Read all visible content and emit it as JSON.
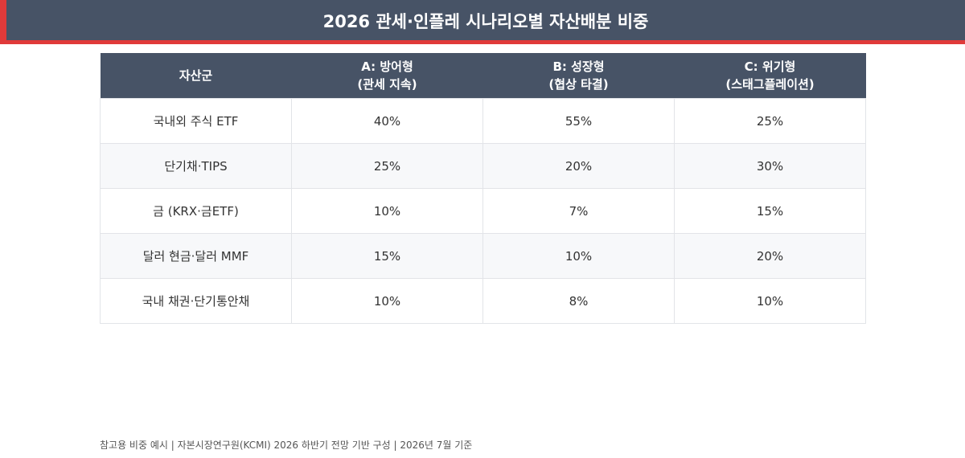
{
  "header": {
    "title": "2026 관세·인플레 시나리오별 자산배분 비중"
  },
  "table": {
    "columns": [
      "자산군",
      "A: 방어형\n(관세 지속)",
      "B: 성장형\n(협상 타결)",
      "C: 위기형\n(스태그플레이션)"
    ],
    "rows": [
      [
        "국내외 주식 ETF",
        "40%",
        "55%",
        "25%"
      ],
      [
        "단기채·TIPS",
        "25%",
        "20%",
        "30%"
      ],
      [
        "금 (KRX·금ETF)",
        "10%",
        "7%",
        "15%"
      ],
      [
        "달러 현금·달러 MMF",
        "15%",
        "10%",
        "20%"
      ],
      [
        "국내 채권·단기통안채",
        "10%",
        "8%",
        "10%"
      ]
    ]
  },
  "footer": {
    "note": "참고용 비중 예시 | 자본시장연구원(KCMI) 2026 하반기 전망 기반 구성 | 2026년 7월 기준"
  }
}
